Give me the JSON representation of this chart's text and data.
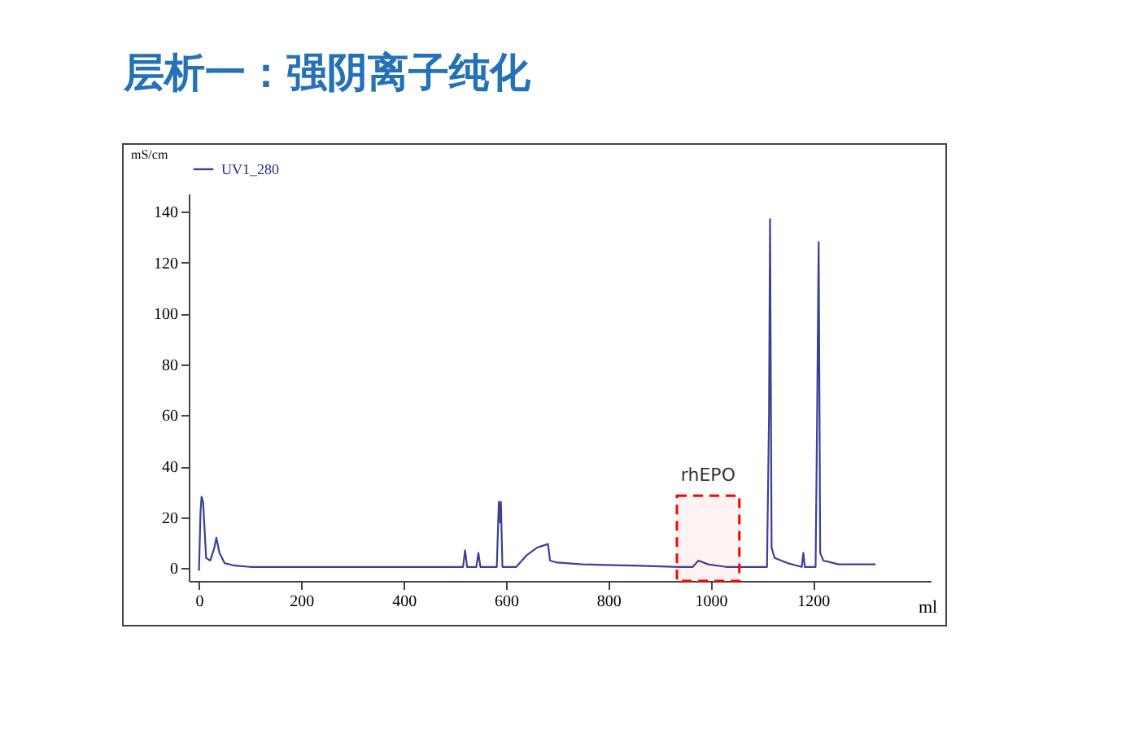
{
  "chart_data": {
    "type": "line",
    "title": "层析一：强阴离子纯化",
    "xlabel": "ml",
    "ylabel": "mS/cm",
    "x": [
      0,
      3,
      5,
      8,
      14,
      22,
      30,
      34,
      40,
      50,
      70,
      100,
      300,
      516,
      520,
      524,
      542,
      546,
      550,
      582,
      586,
      588,
      590,
      593,
      620,
      640,
      660,
      682,
      686,
      700,
      750,
      850,
      940,
      965,
      976,
      995,
      1030,
      1110,
      1114,
      1116,
      1119,
      1125,
      1150,
      1178,
      1181,
      1184,
      1205,
      1208,
      1211,
      1214,
      1220,
      1250,
      1322
    ],
    "series": [
      {
        "name": "UV1_280",
        "color": "#3c4196",
        "values": [
          -1,
          22,
          28,
          26,
          4,
          3,
          8,
          12,
          6,
          2,
          1,
          0.5,
          0.5,
          0.5,
          7,
          0.5,
          0.5,
          6,
          0.5,
          0.5,
          26,
          18,
          26,
          0.5,
          0.5,
          5,
          8,
          9.5,
          3,
          2.2,
          1.5,
          1,
          0.5,
          0.5,
          3,
          1.5,
          0.5,
          0.5,
          60,
          137,
          8,
          4,
          2,
          0.5,
          6,
          0.5,
          0.5,
          60,
          128,
          6,
          3,
          1.5,
          1.5
        ]
      }
    ],
    "xlim": [
      -20,
      1430
    ],
    "xticks": [
      0,
      200,
      400,
      600,
      800,
      1000,
      1200
    ],
    "ylim": [
      -5,
      147
    ],
    "yticks": [
      0,
      20,
      40,
      60,
      80,
      100,
      120,
      140
    ],
    "grid": false,
    "legend": "top left",
    "bands": [
      {
        "axis": "x",
        "from": 934,
        "to": 1056,
        "label": "rhEPO",
        "color": "#ff0000"
      }
    ]
  }
}
